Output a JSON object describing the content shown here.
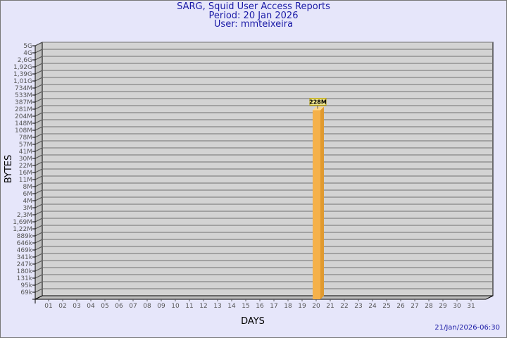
{
  "header": {
    "title": "SARG, Squid User Access Reports",
    "period": "Period: 20 Jan 2026",
    "user": "User: mmteixeira"
  },
  "footer": {
    "timestamp": "21/Jan/2026-06:30"
  },
  "chart_data": {
    "type": "bar",
    "xlabel": "DAYS",
    "ylabel": "BYTES",
    "yscale": "log",
    "grid": true,
    "y_ticks": [
      "5G",
      "4G",
      "2,6G",
      "1,92G",
      "1,39G",
      "1,01G",
      "734M",
      "533M",
      "387M",
      "281M",
      "204M",
      "148M",
      "108M",
      "78M",
      "57M",
      "41M",
      "30M",
      "22M",
      "16M",
      "11M",
      "8M",
      "6M",
      "4M",
      "3M",
      "2,3M",
      "1,69M",
      "1,22M",
      "889k",
      "646k",
      "469k",
      "341k",
      "247k",
      "180k",
      "131k",
      "95k",
      "69k"
    ],
    "categories": [
      "01",
      "02",
      "03",
      "04",
      "05",
      "06",
      "07",
      "08",
      "09",
      "10",
      "11",
      "12",
      "13",
      "14",
      "15",
      "16",
      "17",
      "18",
      "19",
      "20",
      "21",
      "22",
      "23",
      "24",
      "25",
      "26",
      "27",
      "28",
      "29",
      "30",
      "31"
    ],
    "bars": [
      {
        "day": "20",
        "value": "228M",
        "label": "228M"
      }
    ],
    "colors": {
      "bar": "#f5b14a",
      "bar_side": "#e09a30",
      "wall": "#d3d3d3",
      "side_wall": "#c0c0c0",
      "label_bg": "#f0e68c"
    }
  }
}
